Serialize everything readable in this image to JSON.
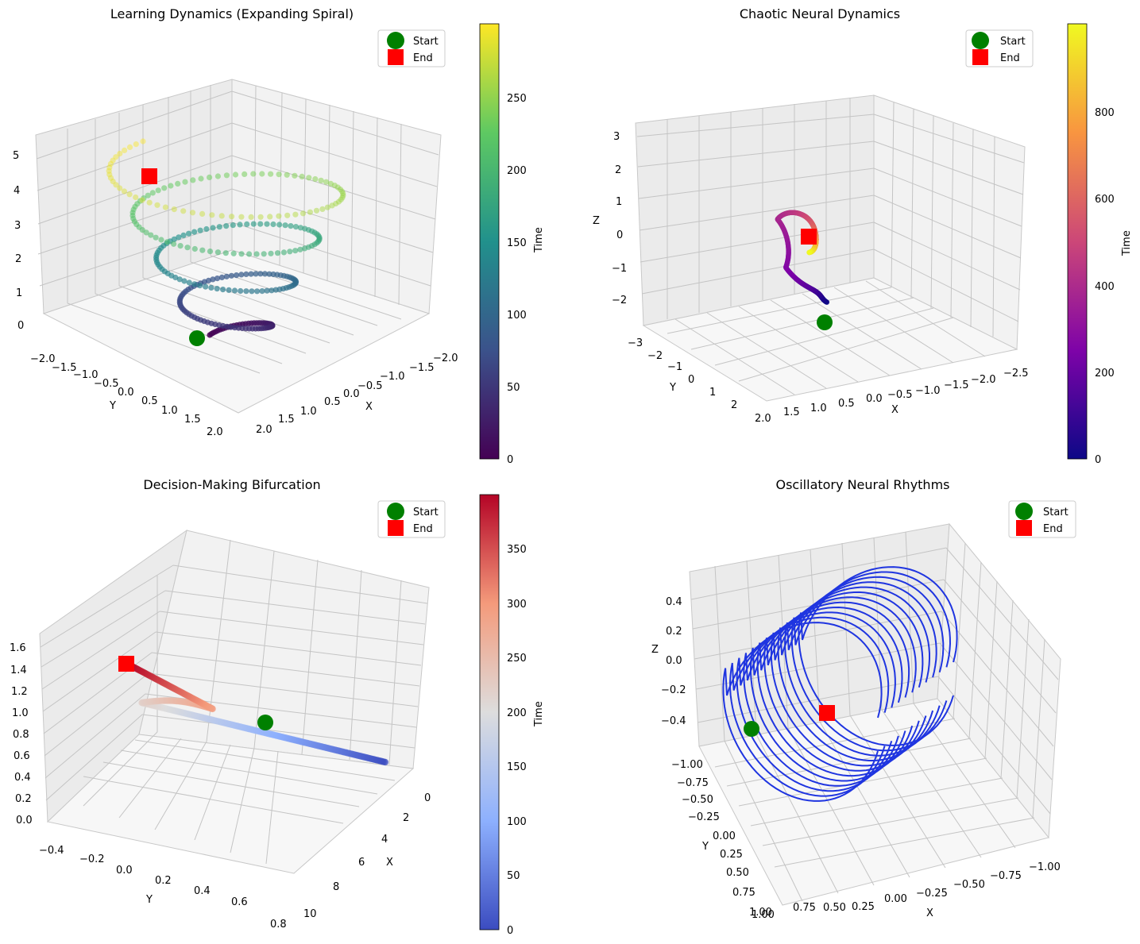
{
  "chart_data": [
    {
      "type": "scatter",
      "title": "Learning Dynamics (Expanding Spiral)",
      "xlabel": "X",
      "ylabel": "Y",
      "zlabel": "",
      "xticks": [
        "−2.0",
        "−1.5",
        "−1.0",
        "−0.5",
        "0.0",
        "0.5",
        "1.0",
        "1.5",
        "2.0"
      ],
      "yticks": [
        "−2.0",
        "−1.5",
        "−1.0",
        "−0.5",
        "0.0",
        "0.5",
        "1.0",
        "1.5",
        "2.0"
      ],
      "zticks": [
        "0",
        "1",
        "2",
        "3",
        "4",
        "5"
      ],
      "colormap": "viridis",
      "colorbar_label": "Time",
      "colorbar_ticks": [
        "0",
        "50",
        "100",
        "150",
        "200",
        "250"
      ],
      "time_range": [
        0,
        299
      ],
      "legend": [
        "Start",
        "End"
      ],
      "legend_placement": "top-right",
      "start_point": [
        0.0,
        2.0,
        0.0
      ],
      "end_point": [
        -1.4,
        -0.9,
        4.9
      ]
    },
    {
      "type": "scatter",
      "title": "Chaotic Neural Dynamics",
      "xlabel": "X",
      "ylabel": "Y",
      "zlabel": "Z",
      "xticks": [
        "−2.5",
        "−2.0",
        "−1.5",
        "−1.0",
        "−0.5",
        "0.0",
        "0.5",
        "1.0",
        "1.5",
        "2.0"
      ],
      "yticks": [
        "−3",
        "−2",
        "−1",
        "0",
        "1",
        "2"
      ],
      "zticks": [
        "−2",
        "−1",
        "0",
        "1",
        "2",
        "3"
      ],
      "colormap": "plasma",
      "colorbar_label": "Time",
      "colorbar_ticks": [
        "0",
        "200",
        "400",
        "600",
        "800"
      ],
      "time_range": [
        0,
        999
      ],
      "legend": [
        "Start",
        "End"
      ],
      "legend_placement": "top-right",
      "start_point": [
        0.1,
        0.3,
        -2.3
      ],
      "end_point": [
        0.3,
        -0.6,
        -0.1
      ]
    },
    {
      "type": "scatter",
      "title": "Decision-Making Bifurcation",
      "xlabel": "X",
      "ylabel": "Y",
      "zlabel": "",
      "xticks": [
        "0",
        "2",
        "4",
        "6",
        "8",
        "10"
      ],
      "yticks": [
        "−0.4",
        "−0.2",
        "0.0",
        "0.2",
        "0.4",
        "0.6",
        "0.8"
      ],
      "zticks": [
        "0.0",
        "0.2",
        "0.4",
        "0.6",
        "0.8",
        "1.0",
        "1.2",
        "1.4",
        "1.6"
      ],
      "colormap": "coolwarm",
      "colorbar_label": "Time",
      "colorbar_ticks": [
        "0",
        "50",
        "100",
        "150",
        "200",
        "250",
        "300",
        "350"
      ],
      "time_range": [
        0,
        399
      ],
      "legend": [
        "Start",
        "End"
      ],
      "legend_placement": "top-right",
      "start_point": [
        0.0,
        0.0,
        0.6
      ],
      "end_point": [
        9.8,
        -0.4,
        1.5
      ]
    },
    {
      "type": "line",
      "title": "Oscillatory Neural Rhythms",
      "xlabel": "X",
      "ylabel": "Y",
      "zlabel": "Z",
      "xticks": [
        "−1.00",
        "−0.75",
        "−0.50",
        "−0.25",
        "0.00",
        "0.25",
        "0.50",
        "0.75",
        "1.00"
      ],
      "yticks": [
        "−1.00",
        "−0.75",
        "−0.50",
        "−0.25",
        "0.00",
        "0.25",
        "0.50",
        "0.75",
        "1.00"
      ],
      "zticks": [
        "−0.4",
        "−0.2",
        "0.0",
        "0.2",
        "0.4"
      ],
      "line_color": "#1f35e0",
      "legend": [
        "Start",
        "End"
      ],
      "legend_placement": "top-right",
      "start_point": [
        0.0,
        1.0,
        -0.45
      ],
      "end_point": [
        0.45,
        0.35,
        -0.35
      ]
    }
  ]
}
